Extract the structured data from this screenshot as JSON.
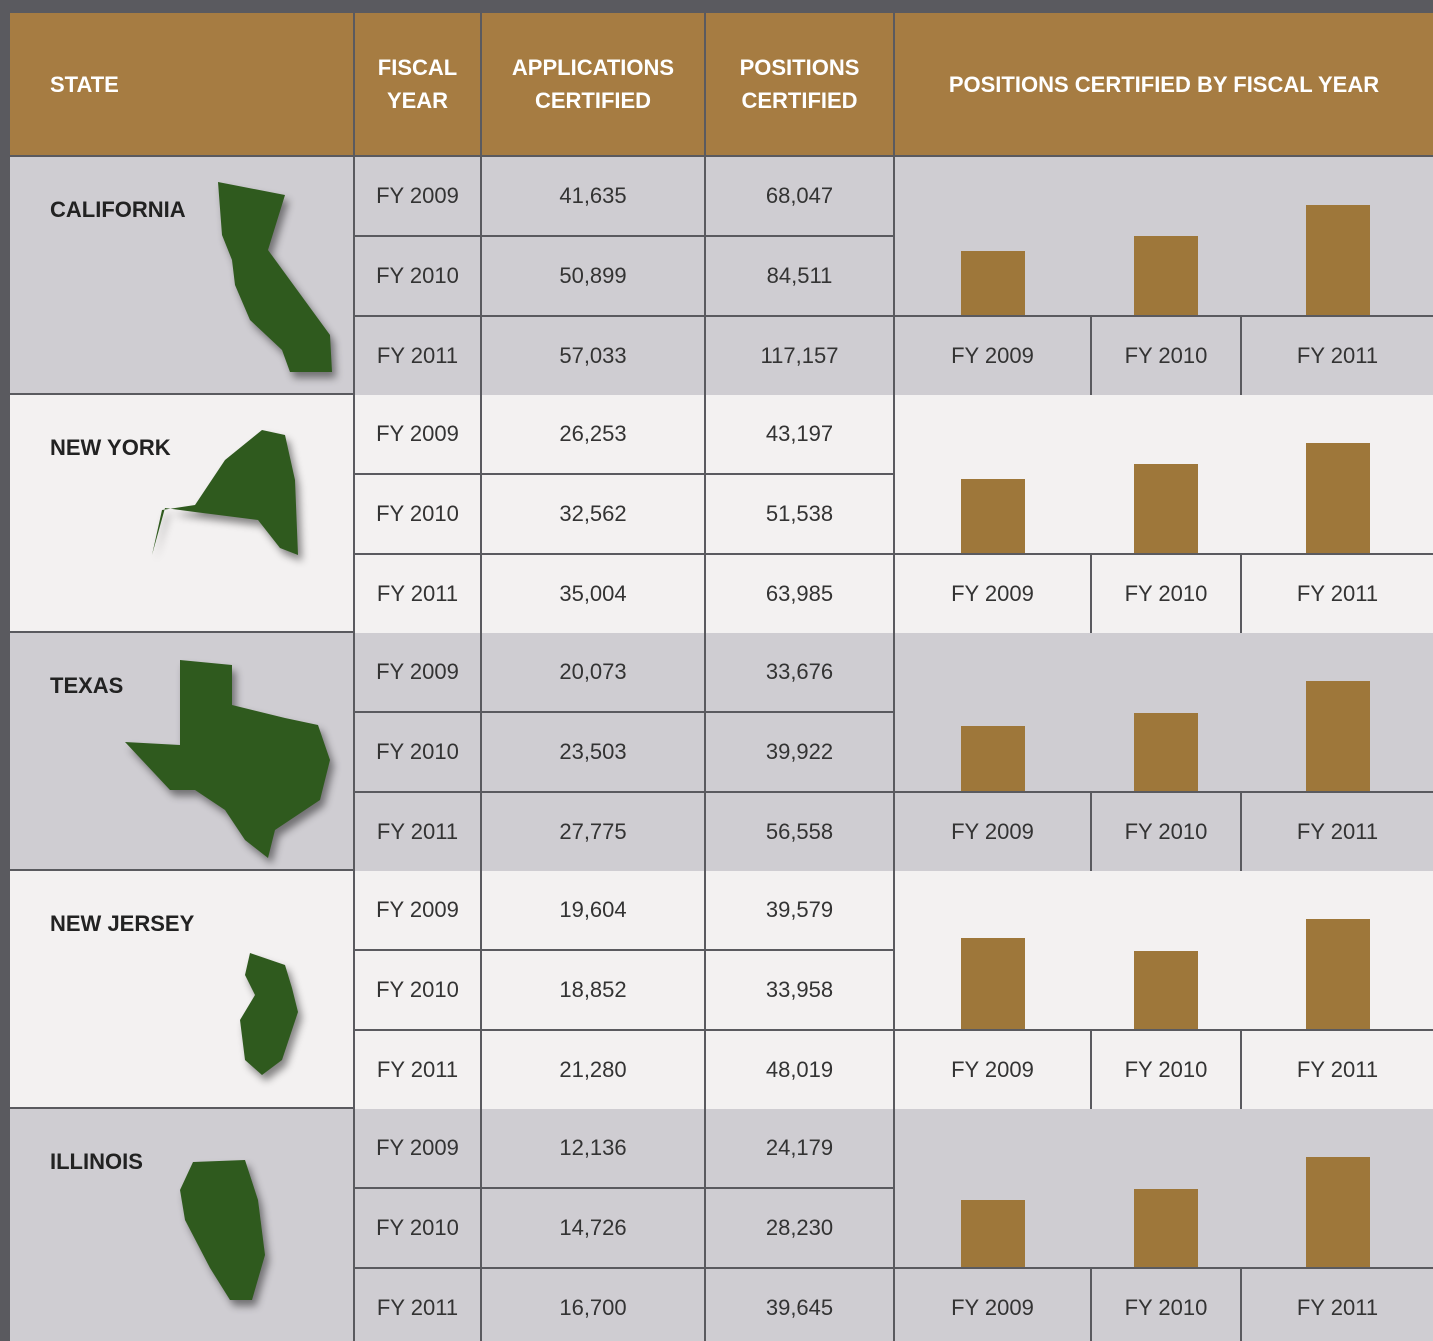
{
  "header": {
    "state": "STATE",
    "fiscal_year": "FISCAL YEAR",
    "applications": "APPLICATIONS CERTIFIED",
    "positions": "POSITIONS CERTIFIED",
    "chart": "POSITIONS CERTIFIED BY FISCAL YEAR"
  },
  "states": [
    {
      "name": "CALIFORNIA",
      "rows": [
        {
          "year": "FY 2009",
          "applications": "41,635",
          "positions": {
            "value": 68047,
            "label": "68,047"
          }
        },
        {
          "year": "FY 2010",
          "applications": "50,899",
          "positions": {
            "value": 84511,
            "label": "84,511"
          }
        },
        {
          "year": "FY 2011",
          "applications": "57,033",
          "positions": {
            "value": 117157,
            "label": "117,157"
          }
        }
      ]
    },
    {
      "name": "NEW YORK",
      "rows": [
        {
          "year": "FY 2009",
          "applications": "26,253",
          "positions": {
            "value": 43197,
            "label": "43,197"
          }
        },
        {
          "year": "FY 2010",
          "applications": "32,562",
          "positions": {
            "value": 51538,
            "label": "51,538"
          }
        },
        {
          "year": "FY 2011",
          "applications": "35,004",
          "positions": {
            "value": 63985,
            "label": "63,985"
          }
        }
      ]
    },
    {
      "name": "TEXAS",
      "rows": [
        {
          "year": "FY 2009",
          "applications": "20,073",
          "positions": {
            "value": 33676,
            "label": "33,676"
          }
        },
        {
          "year": "FY 2010",
          "applications": "23,503",
          "positions": {
            "value": 39922,
            "label": "39,922"
          }
        },
        {
          "year": "FY 2011",
          "applications": "27,775",
          "positions": {
            "value": 56558,
            "label": "56,558"
          }
        }
      ]
    },
    {
      "name": "NEW JERSEY",
      "rows": [
        {
          "year": "FY 2009",
          "applications": "19,604",
          "positions": {
            "value": 39579,
            "label": "39,579"
          }
        },
        {
          "year": "FY 2010",
          "applications": "18,852",
          "positions": {
            "value": 33958,
            "label": "33,958"
          }
        },
        {
          "year": "FY 2011",
          "applications": "21,280",
          "positions": {
            "value": 48019,
            "label": "48,019"
          }
        }
      ]
    },
    {
      "name": "ILLINOIS",
      "rows": [
        {
          "year": "FY 2009",
          "applications": "12,136",
          "positions": {
            "value": 24179,
            "label": "24,179"
          }
        },
        {
          "year": "FY 2010",
          "applications": "14,726",
          "positions": {
            "value": 28230,
            "label": "28,230"
          }
        },
        {
          "year": "FY 2011",
          "applications": "16,700",
          "positions": {
            "value": 39645,
            "label": "39,645"
          }
        }
      ]
    }
  ]
}
